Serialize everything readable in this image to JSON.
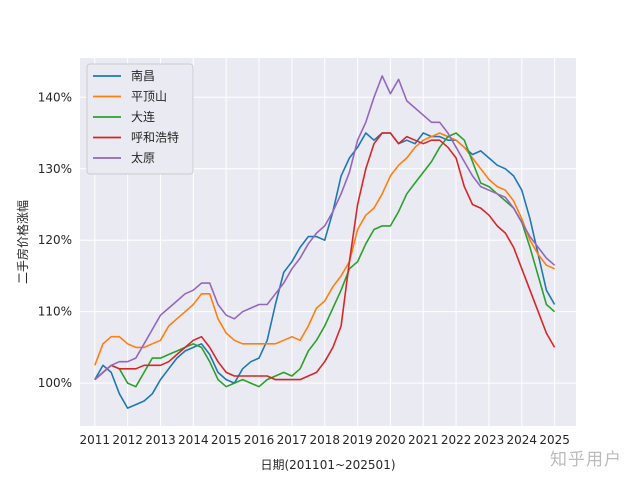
{
  "chart_data": {
    "type": "line",
    "title": "",
    "xlabel": "日期(201101~202501)",
    "ylabel": "二手房价格涨幅",
    "xlim": [
      2010.55,
      2025.65
    ],
    "ylim": [
      94,
      145.5
    ],
    "x_ticks": [
      2011,
      2012,
      2013,
      2014,
      2015,
      2016,
      2017,
      2018,
      2019,
      2020,
      2021,
      2022,
      2023,
      2024,
      2025
    ],
    "x_tick_labels": [
      "2011",
      "2012",
      "2013",
      "2014",
      "2015",
      "2016",
      "2017",
      "2018",
      "2019",
      "2020",
      "2021",
      "2022",
      "2023",
      "2024",
      "2025"
    ],
    "y_ticks": [
      100,
      110,
      120,
      130,
      140
    ],
    "y_tick_labels": [
      "100%",
      "110%",
      "120%",
      "130%",
      "140%"
    ],
    "grid": true,
    "background": "#eaeaf2",
    "legend_position": "top-left",
    "series": [
      {
        "name": "南昌",
        "color": "#1f77b4",
        "x": [
          2011,
          2011.25,
          2011.5,
          2011.75,
          2012,
          2012.25,
          2012.5,
          2012.75,
          2013,
          2013.25,
          2013.5,
          2013.75,
          2014,
          2014.25,
          2014.5,
          2014.75,
          2015,
          2015.25,
          2015.5,
          2015.75,
          2016,
          2016.25,
          2016.5,
          2016.75,
          2017,
          2017.25,
          2017.5,
          2017.75,
          2018,
          2018.25,
          2018.5,
          2018.75,
          2019,
          2019.25,
          2019.5,
          2019.75,
          2020,
          2020.25,
          2020.5,
          2020.75,
          2021,
          2021.25,
          2021.5,
          2021.75,
          2022,
          2022.25,
          2022.5,
          2022.75,
          2023,
          2023.25,
          2023.5,
          2023.75,
          2024,
          2024.25,
          2024.5,
          2024.75,
          2025
        ],
        "y": [
          100.5,
          102.5,
          101.5,
          98.5,
          96.5,
          97,
          97.5,
          98.5,
          100.5,
          102,
          103.5,
          104.5,
          105,
          105.5,
          104,
          101.5,
          100.5,
          100,
          102,
          103,
          103.5,
          106,
          111,
          115.5,
          117,
          119,
          120.5,
          120.5,
          120,
          124,
          129,
          131.5,
          133,
          135,
          134,
          135,
          135,
          133.5,
          134,
          133.5,
          135,
          134.5,
          134.5,
          134,
          134,
          133,
          132,
          132.5,
          131.5,
          130.5,
          130,
          129,
          127,
          123,
          118,
          113,
          111
        ]
      },
      {
        "name": "平顶山",
        "color": "#ff7f0e",
        "x": [
          2011,
          2011.25,
          2011.5,
          2011.75,
          2012,
          2012.25,
          2012.5,
          2012.75,
          2013,
          2013.25,
          2013.5,
          2013.75,
          2014,
          2014.25,
          2014.5,
          2014.75,
          2015,
          2015.25,
          2015.5,
          2015.75,
          2016,
          2016.25,
          2016.5,
          2016.75,
          2017,
          2017.25,
          2017.5,
          2017.75,
          2018,
          2018.25,
          2018.5,
          2018.75,
          2019,
          2019.25,
          2019.5,
          2019.75,
          2020,
          2020.25,
          2020.5,
          2020.75,
          2021,
          2021.25,
          2021.5,
          2021.75,
          2022,
          2022.25,
          2022.5,
          2022.75,
          2023,
          2023.25,
          2023.5,
          2023.75,
          2024,
          2024.25,
          2024.5,
          2024.75,
          2025
        ],
        "y": [
          102.5,
          105.5,
          106.5,
          106.5,
          105.5,
          105,
          105,
          105.5,
          106,
          108,
          109,
          110,
          111,
          112.5,
          112.5,
          109,
          107,
          106,
          105.5,
          105.5,
          105.5,
          105.5,
          105.5,
          106,
          106.5,
          106,
          108,
          110.5,
          111.5,
          113.5,
          115,
          117,
          121.5,
          123.5,
          124.5,
          126.5,
          129,
          130.5,
          131.5,
          133,
          134,
          134.5,
          135,
          134.5,
          134,
          133,
          131.5,
          130,
          128.5,
          127.5,
          127,
          125.5,
          123,
          120,
          118,
          116.5,
          116
        ]
      },
      {
        "name": "大连",
        "color": "#2ca02c",
        "x": [
          2011,
          2011.25,
          2011.5,
          2011.75,
          2012,
          2012.25,
          2012.5,
          2012.75,
          2013,
          2013.25,
          2013.5,
          2013.75,
          2014,
          2014.25,
          2014.5,
          2014.75,
          2015,
          2015.25,
          2015.5,
          2015.75,
          2016,
          2016.25,
          2016.5,
          2016.75,
          2017,
          2017.25,
          2017.5,
          2017.75,
          2018,
          2018.25,
          2018.5,
          2018.75,
          2019,
          2019.25,
          2019.5,
          2019.75,
          2020,
          2020.25,
          2020.5,
          2020.75,
          2021,
          2021.25,
          2021.5,
          2021.75,
          2022,
          2022.25,
          2022.5,
          2022.75,
          2023,
          2023.25,
          2023.5,
          2023.75,
          2024,
          2024.25,
          2024.5,
          2024.75,
          2025
        ],
        "y": [
          100.5,
          101.5,
          102.5,
          102,
          100,
          99.5,
          101.5,
          103.5,
          103.5,
          104,
          104.5,
          105,
          105.5,
          105,
          103,
          100.5,
          99.5,
          100,
          100.5,
          100,
          99.5,
          100.5,
          101,
          101.5,
          101,
          102,
          104.5,
          106,
          108,
          110.5,
          113,
          116,
          117,
          119.5,
          121.5,
          122,
          122,
          124,
          126.5,
          128,
          129.5,
          131,
          133,
          134.5,
          135,
          134,
          131,
          128,
          127.5,
          126.5,
          125.5,
          124.5,
          122.5,
          119,
          115,
          111,
          110
        ]
      },
      {
        "name": "呼和浩特",
        "color": "#d62728",
        "x": [
          2011,
          2011.25,
          2011.5,
          2011.75,
          2012,
          2012.25,
          2012.5,
          2012.75,
          2013,
          2013.25,
          2013.5,
          2013.75,
          2014,
          2014.25,
          2014.5,
          2014.75,
          2015,
          2015.25,
          2015.5,
          2015.75,
          2016,
          2016.25,
          2016.5,
          2016.75,
          2017,
          2017.25,
          2017.5,
          2017.75,
          2018,
          2018.25,
          2018.5,
          2018.75,
          2019,
          2019.25,
          2019.5,
          2019.75,
          2020,
          2020.25,
          2020.5,
          2020.75,
          2021,
          2021.25,
          2021.5,
          2021.75,
          2022,
          2022.25,
          2022.5,
          2022.75,
          2023,
          2023.25,
          2023.5,
          2023.75,
          2024,
          2024.25,
          2024.5,
          2024.75,
          2025
        ],
        "y": [
          100.5,
          101.5,
          102.5,
          102,
          102,
          102,
          102.5,
          102.5,
          102.5,
          103,
          104,
          105,
          106,
          106.5,
          105,
          103,
          101.5,
          101,
          101,
          101,
          101,
          101,
          100.5,
          100.5,
          100.5,
          100.5,
          101,
          101.5,
          103,
          105,
          108,
          117,
          125,
          130,
          133.5,
          135,
          135,
          133.5,
          134.5,
          134,
          133.5,
          134,
          134,
          133,
          131.5,
          127.5,
          125,
          124.5,
          123.5,
          122,
          121,
          119,
          116,
          113,
          110,
          107,
          105
        ]
      },
      {
        "name": "太原",
        "color": "#9467bd",
        "x": [
          2011,
          2011.25,
          2011.5,
          2011.75,
          2012,
          2012.25,
          2012.5,
          2012.75,
          2013,
          2013.25,
          2013.5,
          2013.75,
          2014,
          2014.25,
          2014.5,
          2014.75,
          2015,
          2015.25,
          2015.5,
          2015.75,
          2016,
          2016.25,
          2016.5,
          2016.75,
          2017,
          2017.25,
          2017.5,
          2017.75,
          2018,
          2018.25,
          2018.5,
          2018.75,
          2019,
          2019.25,
          2019.5,
          2019.75,
          2020,
          2020.25,
          2020.5,
          2020.75,
          2021,
          2021.25,
          2021.5,
          2021.75,
          2022,
          2022.25,
          2022.5,
          2022.75,
          2023,
          2023.25,
          2023.5,
          2023.75,
          2024,
          2024.25,
          2024.5,
          2024.75,
          2025
        ],
        "y": [
          100.5,
          101.5,
          102.5,
          103,
          103,
          103.5,
          105.5,
          107.5,
          109.5,
          110.5,
          111.5,
          112.5,
          113,
          114,
          114,
          111,
          109.5,
          109,
          110,
          110.5,
          111,
          111,
          112.5,
          114,
          116,
          117.5,
          119.5,
          121,
          122,
          124,
          126.5,
          129.5,
          134,
          136.5,
          140,
          143,
          140.5,
          142.5,
          139.5,
          138.5,
          137.5,
          136.5,
          136.5,
          135,
          133,
          131,
          129,
          127.5,
          127,
          126.5,
          126,
          124.5,
          122.5,
          120.5,
          119,
          117.5,
          116.5
        ]
      }
    ]
  },
  "watermark": "知乎用户"
}
